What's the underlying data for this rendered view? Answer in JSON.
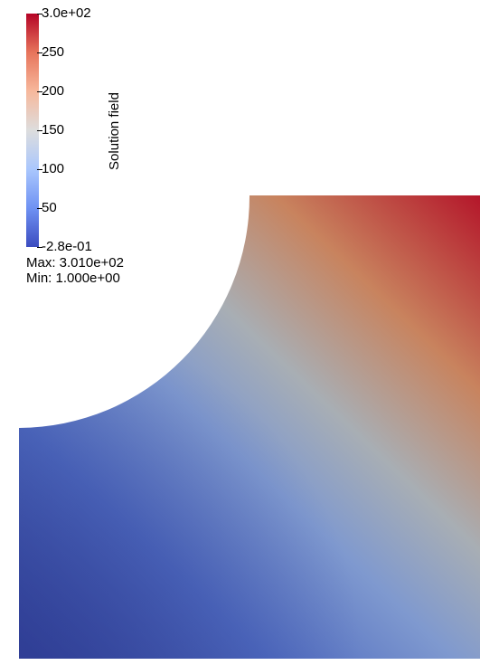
{
  "colorbar": {
    "title": "Solution field",
    "ticks": [
      {
        "label": "3.0e+02",
        "value": 300
      },
      {
        "label": "250",
        "value": 250
      },
      {
        "label": "200",
        "value": 200
      },
      {
        "label": "150",
        "value": 150
      },
      {
        "label": "100",
        "value": 100
      },
      {
        "label": "50",
        "value": 50
      },
      {
        "label": "-2.8e-01",
        "value": -0.28
      }
    ],
    "range": [
      -0.28,
      300
    ],
    "colors": [
      "#3b4cc0",
      "#6f92f3",
      "#aac7fd",
      "#dddddd",
      "#f7b89c",
      "#e7745b",
      "#b40426"
    ]
  },
  "stats": {
    "max": "Max: 3.010e+02",
    "min": "Min: 1.000e+00"
  },
  "field": {
    "bg": "#ffffff",
    "colormap": "cool-to-warm"
  }
}
